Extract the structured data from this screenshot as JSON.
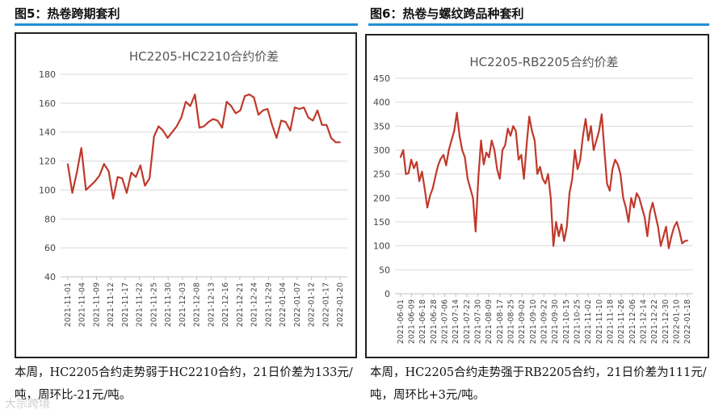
{
  "figures": [
    {
      "title": "图5：热卷跨期套利",
      "caption": "本周，HC2205合约走势弱于HC2210合约，21日价差为133元/吨，周环比-21元/吨。"
    },
    {
      "title": "图6：热卷与螺纹跨品种套利",
      "caption": "本周，HC2205合约走势强于RB2205合约，21日价差为111元/吨，周环比+3元/吨。"
    }
  ],
  "watermark": "大宗跨境",
  "colors": {
    "accent_bar": "#1f8fd6",
    "series": "#c0392b"
  },
  "chart_data": [
    {
      "type": "line",
      "title": "HC2205-HC2210合约价差",
      "ylim": [
        40,
        180
      ],
      "yticks": [
        40,
        60,
        80,
        100,
        120,
        140,
        160,
        180
      ],
      "grid": true,
      "xticks": [
        "2021-11-01",
        "2021-11-04",
        "2021-11-09",
        "2021-11-12",
        "2021-11-17",
        "2021-11-22",
        "2021-11-25",
        "2021-11-30",
        "2021-12-03",
        "2021-12-08",
        "2021-12-13",
        "2021-12-16",
        "2021-12-21",
        "2021-12-24",
        "2021-12-29",
        "2022-01-04",
        "2022-01-07",
        "2022-01-12",
        "2022-01-17",
        "2022-01-20"
      ],
      "values": [
        118,
        98,
        112,
        129,
        100,
        103,
        106,
        110,
        118,
        113,
        94,
        109,
        108,
        98,
        112,
        109,
        117,
        103,
        108,
        137,
        144,
        141,
        136,
        140,
        144,
        150,
        161,
        158,
        166,
        143,
        144,
        147,
        149,
        148,
        143,
        161,
        158,
        153,
        155,
        165,
        166,
        164,
        152,
        155,
        156,
        145,
        136,
        148,
        147,
        141,
        157,
        156,
        157,
        150,
        148,
        155,
        145,
        145,
        136,
        133,
        133
      ]
    },
    {
      "type": "line",
      "title": "HC2205-RB2205合约价差",
      "ylim": [
        0,
        450
      ],
      "yticks": [
        0,
        50,
        100,
        150,
        200,
        250,
        300,
        350,
        400,
        450
      ],
      "grid": true,
      "xticks": [
        "2021-06-01",
        "2021-06-09",
        "2021-06-18",
        "2021-06-28",
        "2021-07-06",
        "2021-07-14",
        "2021-07-22",
        "2021-07-30",
        "2021-08-09",
        "2021-08-17",
        "2021-08-25",
        "2021-09-02",
        "2021-09-10",
        "2021-09-22",
        "2021-09-30",
        "2021-10-15",
        "2021-10-25",
        "2021-11-02",
        "2021-11-10",
        "2021-11-18",
        "2021-11-26",
        "2021-12-06",
        "2021-12-14",
        "2021-12-22",
        "2021-12-30",
        "2022-01-10",
        "2022-01-18"
      ],
      "values": [
        285,
        300,
        250,
        252,
        280,
        262,
        275,
        235,
        255,
        220,
        180,
        205,
        220,
        245,
        268,
        282,
        290,
        268,
        300,
        320,
        340,
        378,
        330,
        300,
        285,
        240,
        220,
        200,
        130,
        240,
        320,
        270,
        295,
        285,
        320,
        300,
        260,
        240,
        300,
        310,
        345,
        330,
        350,
        340,
        280,
        290,
        240,
        310,
        370,
        340,
        320,
        250,
        265,
        240,
        230,
        250,
        200,
        100,
        150,
        120,
        145,
        110,
        140,
        210,
        240,
        300,
        260,
        280,
        330,
        365,
        320,
        350,
        300,
        320,
        340,
        375,
        300,
        230,
        215,
        260,
        280,
        270,
        250,
        200,
        180,
        150,
        200,
        180,
        210,
        200,
        180,
        160,
        120,
        170,
        190,
        165,
        140,
        100,
        120,
        140,
        95,
        120,
        140,
        150,
        130,
        105,
        110,
        111
      ]
    }
  ]
}
